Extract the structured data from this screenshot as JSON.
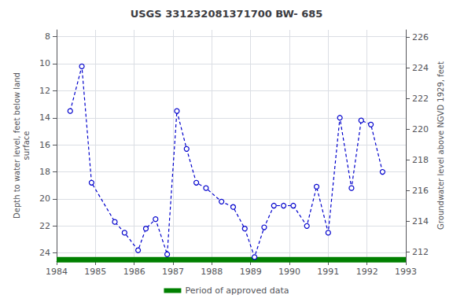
{
  "chart_data": {
    "type": "line",
    "title": "USGS 331232081371700 BW- 685",
    "ylabel": "Depth to water level, feet below land\nsurface",
    "y2label": "Groundwater level above NGVD 1929, feet",
    "xlim": [
      1984,
      1993
    ],
    "xticks": [
      1984,
      1985,
      1986,
      1987,
      1988,
      1989,
      1990,
      1991,
      1992,
      1993
    ],
    "ylim": [
      24.6,
      7.5
    ],
    "yticks": [
      8,
      10,
      12,
      14,
      16,
      18,
      20,
      22,
      24
    ],
    "y2lim": [
      211.4,
      226.5
    ],
    "y2ticks": [
      212,
      214,
      216,
      218,
      220,
      222,
      224,
      226
    ],
    "grid": true,
    "legend": "bottom",
    "series": [
      {
        "type": "line",
        "color": "#0000cc",
        "marker": "circle",
        "line_style": "dashed",
        "x": [
          1984.35,
          1984.65,
          1984.9,
          1985.5,
          1985.75,
          1986.1,
          1986.3,
          1986.55,
          1986.85,
          1987.1,
          1987.35,
          1987.6,
          1987.85,
          1988.25,
          1988.55,
          1988.85,
          1989.1,
          1989.35,
          1989.6,
          1989.85,
          1990.1,
          1990.45,
          1990.7,
          1991.0,
          1991.3,
          1991.6,
          1991.85,
          1992.1,
          1992.4
        ],
        "values": [
          13.5,
          10.2,
          18.8,
          21.7,
          22.5,
          23.8,
          22.2,
          21.5,
          24.1,
          13.5,
          16.3,
          18.8,
          19.2,
          20.2,
          20.6,
          22.2,
          24.3,
          22.1,
          20.5,
          20.5,
          20.5,
          22.0,
          19.1,
          22.5,
          14.0,
          19.2,
          14.2,
          14.5,
          18.0
        ]
      },
      {
        "name": "Period of approved data",
        "type": "line",
        "color": "#008000",
        "marker": "none",
        "line_style": "solid",
        "x": [
          1984,
          1993
        ],
        "values": [
          24.5,
          24.5
        ]
      }
    ]
  }
}
